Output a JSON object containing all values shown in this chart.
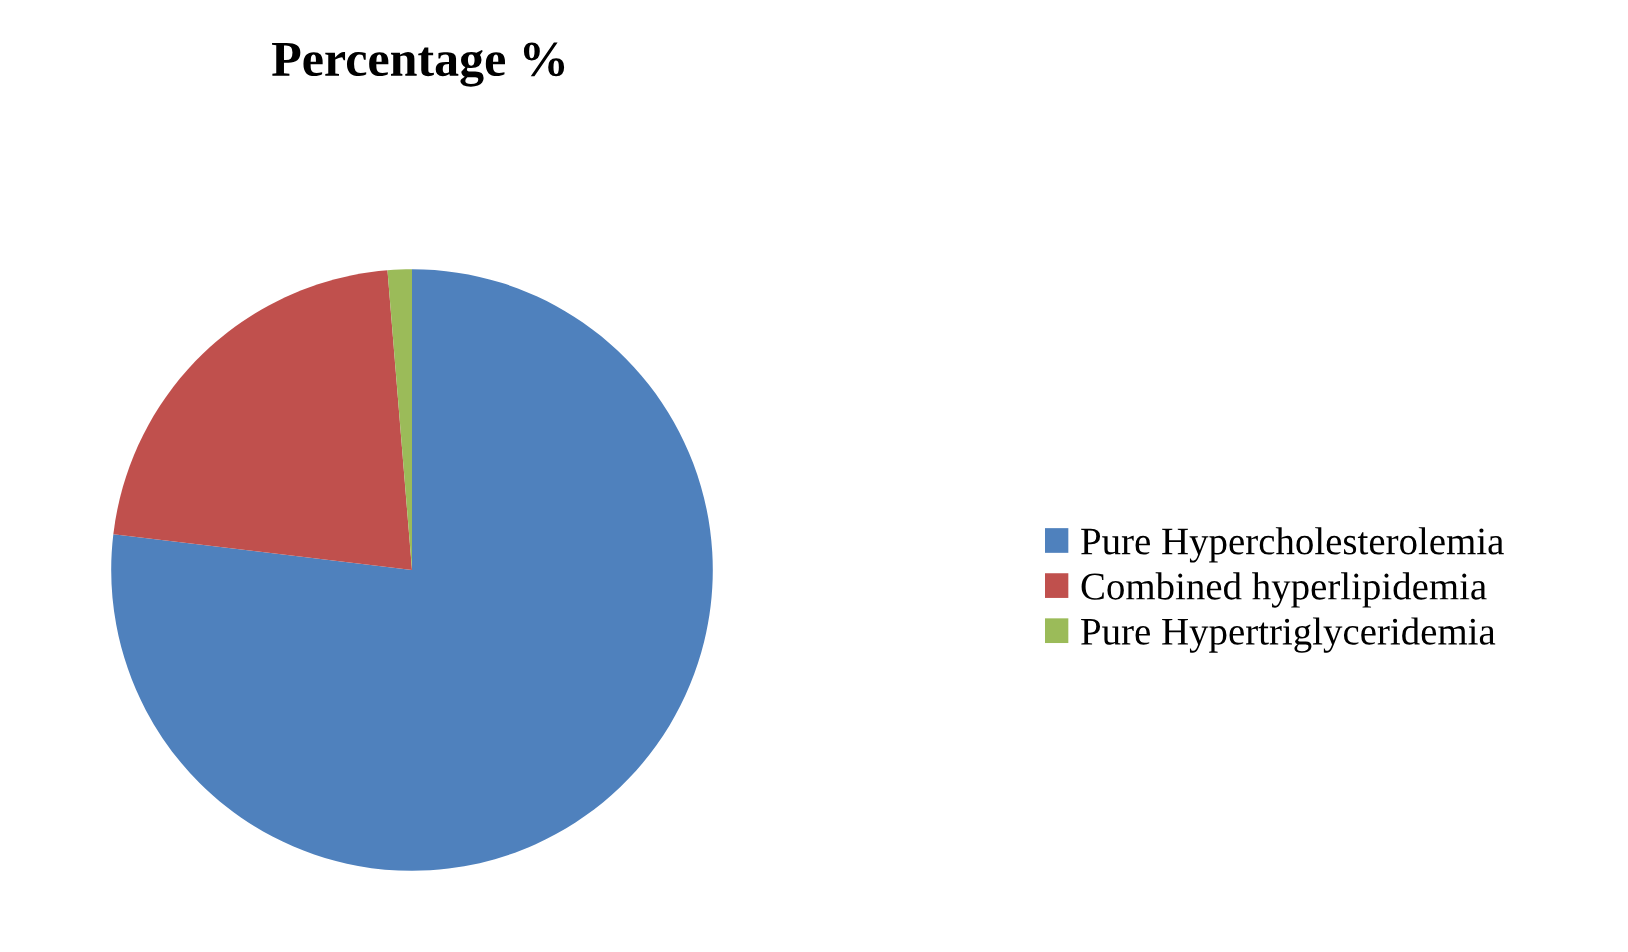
{
  "chart_data": {
    "type": "pie",
    "title": "Percentage %",
    "categories": [
      "Pure Hypercholesterolemia",
      "Combined hyperlipidemia",
      "Pure Hypertriglyceridemia"
    ],
    "values": [
      76.9,
      21.8,
      1.3
    ],
    "colors": [
      "#4f81bd",
      "#c0504d",
      "#9bbb59"
    ],
    "legend": "right"
  }
}
